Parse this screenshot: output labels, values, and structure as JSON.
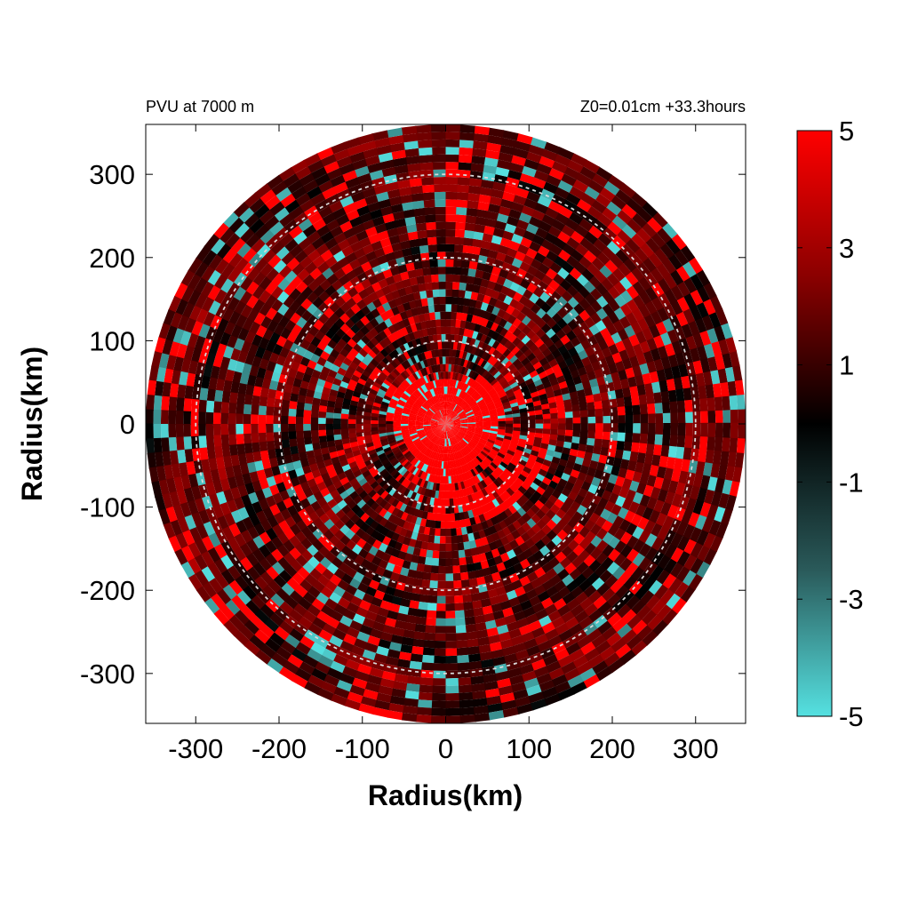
{
  "chart_data": {
    "type": "heatmap",
    "projection": "polar",
    "title_left": "PVU at  7000 m",
    "title_right": "Z0=0.01cm  +33.3hours",
    "xlabel": "Radius(km)",
    "ylabel": "Radius(km)",
    "xlim": [
      -360,
      360
    ],
    "ylim": [
      -360,
      360
    ],
    "x_ticks": [
      -300,
      -200,
      -100,
      0,
      100,
      200,
      300
    ],
    "y_ticks": [
      -300,
      -200,
      -100,
      0,
      100,
      200,
      300
    ],
    "domain_radius_km": 360,
    "reference_circle_radii_km": [
      100,
      200,
      300
    ],
    "reference_circle_style": "dashed",
    "colorbar": {
      "min": -5,
      "max": 5,
      "ticks": [
        5,
        3,
        1,
        -1,
        -3,
        -5
      ],
      "colors": {
        "low": "#55e1e1",
        "mid_low": "#224848",
        "zero": "#000000",
        "mid_high": "#8a0000",
        "high": "#ff0000"
      }
    },
    "field_description": "Potential vorticity (PVU) on a polar grid; strong positive core (>5 PVU) within ~70 km of center with spiral bands of positive and negative values outward",
    "core_value_pvu": 5,
    "background_value_pvu": 1.5
  }
}
